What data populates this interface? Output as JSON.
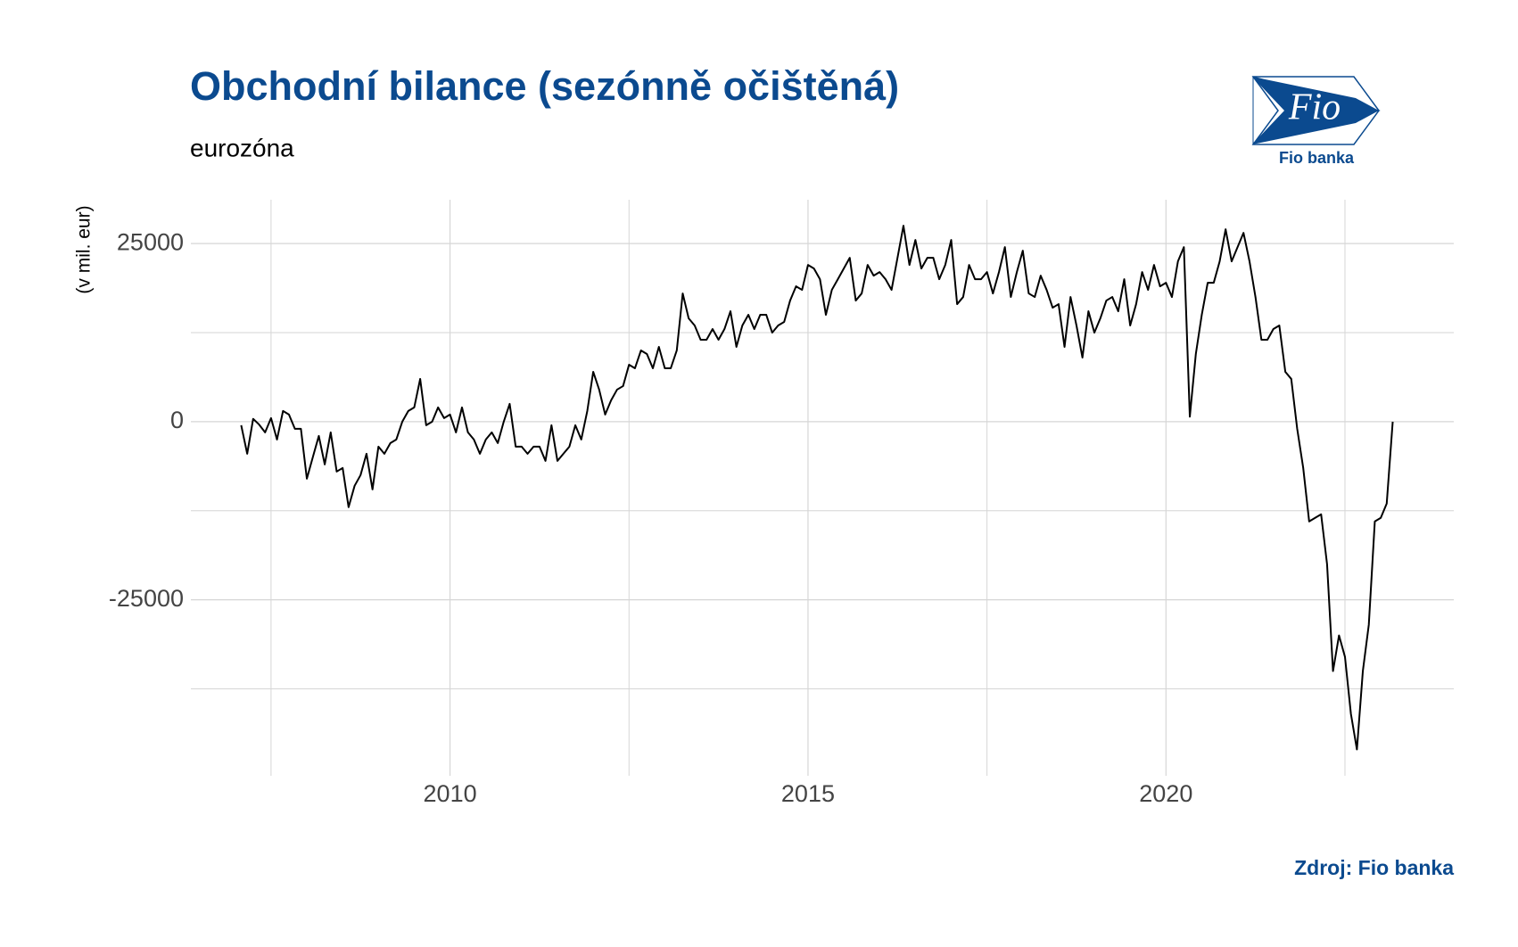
{
  "chart_data": {
    "type": "line",
    "title": "Obchodní bilance (sezónně očištěná)",
    "subtitle": "eurozóna",
    "y_label": "(v mil. eur)",
    "caption": "Zdroj: Fio banka",
    "logo_mark": "Fio",
    "logo_text": "Fio banka",
    "grid": true,
    "x": [
      2007.083,
      2007.167,
      2007.25,
      2007.333,
      2007.417,
      2007.5,
      2007.583,
      2007.667,
      2007.75,
      2007.833,
      2007.917,
      2008.0,
      2008.083,
      2008.167,
      2008.25,
      2008.333,
      2008.417,
      2008.5,
      2008.583,
      2008.667,
      2008.75,
      2008.833,
      2008.917,
      2009.0,
      2009.083,
      2009.167,
      2009.25,
      2009.333,
      2009.417,
      2009.5,
      2009.583,
      2009.667,
      2009.75,
      2009.833,
      2009.917,
      2010.0,
      2010.083,
      2010.167,
      2010.25,
      2010.333,
      2010.417,
      2010.5,
      2010.583,
      2010.667,
      2010.75,
      2010.833,
      2010.917,
      2011.0,
      2011.083,
      2011.167,
      2011.25,
      2011.333,
      2011.417,
      2011.5,
      2011.583,
      2011.667,
      2011.75,
      2011.833,
      2011.917,
      2012.0,
      2012.083,
      2012.167,
      2012.25,
      2012.333,
      2012.417,
      2012.5,
      2012.583,
      2012.667,
      2012.75,
      2012.833,
      2012.917,
      2013.0,
      2013.083,
      2013.167,
      2013.25,
      2013.333,
      2013.417,
      2013.5,
      2013.583,
      2013.667,
      2013.75,
      2013.833,
      2013.917,
      2014.0,
      2014.083,
      2014.167,
      2014.25,
      2014.333,
      2014.417,
      2014.5,
      2014.583,
      2014.667,
      2014.75,
      2014.833,
      2014.917,
      2015.0,
      2015.083,
      2015.167,
      2015.25,
      2015.333,
      2015.417,
      2015.5,
      2015.583,
      2015.667,
      2015.75,
      2015.833,
      2015.917,
      2016.0,
      2016.083,
      2016.167,
      2016.25,
      2016.333,
      2016.417,
      2016.5,
      2016.583,
      2016.667,
      2016.75,
      2016.833,
      2016.917,
      2017.0,
      2017.083,
      2017.167,
      2017.25,
      2017.333,
      2017.417,
      2017.5,
      2017.583,
      2017.667,
      2017.75,
      2017.833,
      2017.917,
      2018.0,
      2018.083,
      2018.167,
      2018.25,
      2018.333,
      2018.417,
      2018.5,
      2018.583,
      2018.667,
      2018.75,
      2018.833,
      2018.917,
      2019.0,
      2019.083,
      2019.167,
      2019.25,
      2019.333,
      2019.417,
      2019.5,
      2019.583,
      2019.667,
      2019.75,
      2019.833,
      2019.917,
      2020.0,
      2020.083,
      2020.167,
      2020.25,
      2020.333,
      2020.417,
      2020.5,
      2020.583,
      2020.667,
      2020.75,
      2020.833,
      2020.917,
      2021.0,
      2021.083,
      2021.167,
      2021.25,
      2021.333,
      2021.417,
      2021.5,
      2021.583,
      2021.667,
      2021.75,
      2021.833,
      2021.917,
      2022.0,
      2022.083,
      2022.167,
      2022.25,
      2022.333,
      2022.417,
      2022.5,
      2022.583,
      2022.667,
      2022.75,
      2022.833,
      2022.917,
      2023.0,
      2023.083,
      2023.167
    ],
    "series": [
      {
        "color": "#000000",
        "values": [
          -500,
          -4500,
          400,
          -400,
          -1500,
          500,
          -2500,
          1500,
          1000,
          -1000,
          -1000,
          -8000,
          -5000,
          -2000,
          -6000,
          -1500,
          -7000,
          -6500,
          -12000,
          -9000,
          -7500,
          -4500,
          -9500,
          -3500,
          -4500,
          -3000,
          -2500,
          0,
          1500,
          2000,
          6000,
          -500,
          0,
          2000,
          500,
          1000,
          -1500,
          2000,
          -1500,
          -2500,
          -4500,
          -2500,
          -1500,
          -3000,
          0,
          2500,
          -3500,
          -3500,
          -4500,
          -3500,
          -3500,
          -5500,
          -500,
          -5500,
          -4500,
          -3500,
          -500,
          -2500,
          1500,
          7000,
          4500,
          1000,
          3000,
          4500,
          5000,
          8000,
          7500,
          10000,
          9500,
          7500,
          10500,
          7500,
          7500,
          10000,
          18000,
          14500,
          13500,
          11500,
          11500,
          13000,
          11500,
          13000,
          15500,
          10500,
          13500,
          15000,
          13000,
          15000,
          15000,
          12500,
          13500,
          14000,
          17000,
          19000,
          18500,
          22000,
          21500,
          20000,
          15000,
          18500,
          20000,
          21500,
          23000,
          17000,
          18000,
          22000,
          20500,
          21000,
          20000,
          18500,
          23000,
          27500,
          22000,
          25500,
          21500,
          23000,
          23000,
          20000,
          22000,
          25500,
          16500,
          17500,
          22000,
          20000,
          20000,
          21000,
          18000,
          21000,
          24500,
          17500,
          21000,
          24000,
          18000,
          17500,
          20500,
          18500,
          16000,
          16500,
          10500,
          17500,
          13500,
          9000,
          15500,
          12500,
          14500,
          17000,
          17500,
          15500,
          20000,
          13500,
          16500,
          21000,
          18500,
          22000,
          19000,
          19500,
          17500,
          22500,
          24500,
          700,
          9500,
          15000,
          19500,
          19500,
          22500,
          27000,
          22500,
          24500,
          26500,
          22500,
          17500,
          11500,
          11500,
          13000,
          13500,
          7000,
          6000,
          -1000,
          -6500,
          -14000,
          -13500,
          -13000,
          -20000,
          -35000,
          -30000,
          -33000,
          -41000,
          -46000,
          -35000,
          -28500,
          -14000,
          -13500,
          -11500,
          0
        ]
      }
    ],
    "xlim": [
      2006.38,
      2024.02
    ],
    "xticks": [
      2010,
      2015,
      2020
    ],
    "ylim": [
      -49700,
      31150
    ],
    "yticks": [
      -25000,
      0,
      25000
    ]
  }
}
